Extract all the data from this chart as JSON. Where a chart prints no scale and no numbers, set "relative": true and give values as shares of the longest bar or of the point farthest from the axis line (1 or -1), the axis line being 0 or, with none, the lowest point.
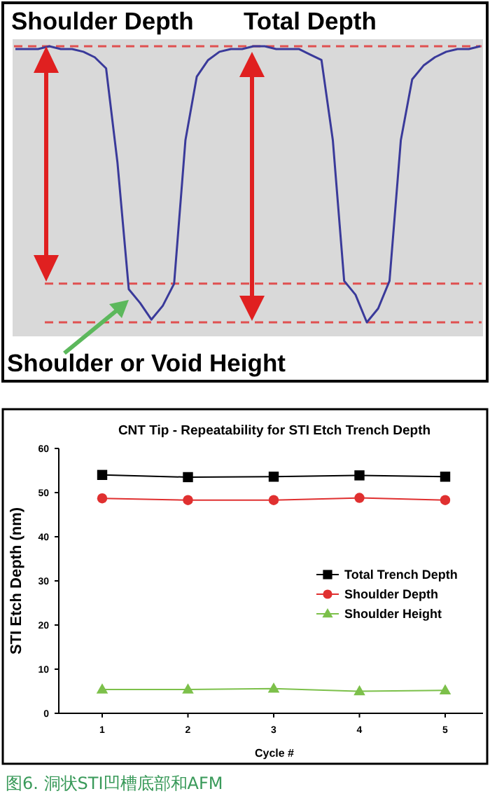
{
  "chart_data": [
    {
      "type": "line",
      "relative": true,
      "categories": [
        null,
        null,
        null,
        null,
        null,
        null,
        null,
        null,
        null,
        null,
        null,
        null,
        null,
        null,
        null,
        null,
        null,
        null,
        null,
        null,
        null,
        null,
        null,
        null,
        null,
        null,
        null,
        null,
        null,
        null,
        null,
        null,
        null,
        null,
        null,
        null,
        null,
        null,
        null,
        null,
        null,
        null
      ],
      "series": [
        {
          "color": "#3a3a9a",
          "values": [
            0.99,
            0.99,
            0.99,
            1,
            0.99,
            0.99,
            0.98,
            0.96,
            0.92,
            0.58,
            0.12,
            0.07,
            0.01,
            0.06,
            0.14,
            0.66,
            0.89,
            0.95,
            0.98,
            0.99,
            0.99,
            1,
            1,
            0.99,
            0.99,
            0.99,
            0.97,
            0.95,
            0.66,
            0.15,
            0.1,
            0,
            0.05,
            0.15,
            0.66,
            0.88,
            0.93,
            0.96,
            0.98,
            0.99,
            0.99,
            1
          ]
        }
      ],
      "marker": "none",
      "ref_lines": [
        {
          "axis": "y",
          "value": 1,
          "color": "#e05050",
          "line_style": "dashed"
        },
        {
          "axis": "y",
          "value": 0.14,
          "color": "#e05050",
          "line_style": "dashed"
        },
        {
          "axis": "y",
          "value": 0,
          "color": "#e05050",
          "line_style": "dashed"
        }
      ],
      "annotations": [
        "Shoulder Depth",
        "Total Depth",
        "Shoulder or Void Height"
      ]
    },
    {
      "type": "line",
      "title": "CNT Tip - Repeatability for STI Etch Trench Depth",
      "xlabel": "Cycle #",
      "ylabel": "STI Etch Depth (nm)",
      "categories": [
        "1",
        "2",
        "3",
        "4",
        "5"
      ],
      "ylim": [
        0,
        60
      ],
      "yticks": [
        0,
        10,
        20,
        30,
        40,
        50,
        60
      ],
      "legend": "right",
      "series": [
        {
          "name": "Total Trench Depth",
          "color": "#000000",
          "marker": "square",
          "values": [
            54.0,
            53.5,
            53.6,
            53.9,
            53.6
          ]
        },
        {
          "name": "Shoulder Depth",
          "color": "#e03030",
          "marker": "circle",
          "values": [
            48.7,
            48.3,
            48.3,
            48.8,
            48.3
          ]
        },
        {
          "name": "Shoulder Height",
          "color": "#7cc04a",
          "marker": "triangle",
          "values": [
            5.4,
            5.4,
            5.6,
            5.0,
            5.2
          ]
        }
      ],
      "annotations": [
        "图6. 洞状STI凹槽底部和AFM"
      ]
    }
  ]
}
